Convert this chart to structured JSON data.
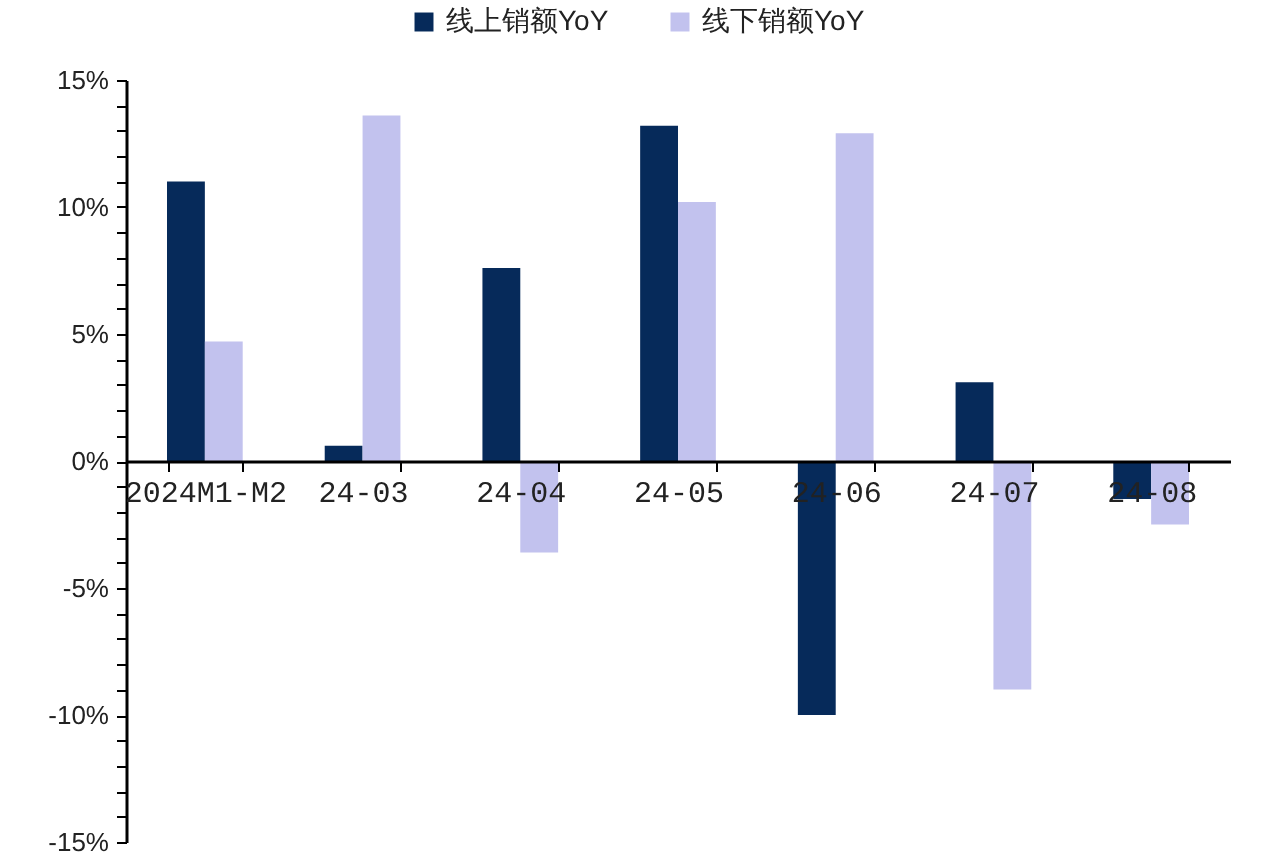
{
  "chart_data": {
    "type": "bar",
    "categories": [
      "2024M1-M2",
      "24-03",
      "24-04",
      "24-05",
      "24-06",
      "24-07",
      "24-08"
    ],
    "series": [
      {
        "name": "线上销额YoY",
        "color": "#062a5a",
        "values": [
          11.0,
          0.6,
          7.6,
          13.2,
          -10.0,
          3.1,
          -1.5
        ]
      },
      {
        "name": "线下销额YoY",
        "color": "#c2c2ee",
        "values": [
          4.7,
          13.6,
          -3.6,
          10.2,
          12.9,
          -9.0,
          -2.5
        ]
      }
    ],
    "ylim": [
      -15,
      15
    ],
    "yticks": [
      {
        "value": -15,
        "label": "-15%"
      },
      {
        "value": -14,
        "label": null
      },
      {
        "value": -13,
        "label": null
      },
      {
        "value": -12,
        "label": null
      },
      {
        "value": -11,
        "label": null
      },
      {
        "value": -10,
        "label": "-10%"
      },
      {
        "value": -9,
        "label": null
      },
      {
        "value": -8,
        "label": null
      },
      {
        "value": -7,
        "label": null
      },
      {
        "value": -6,
        "label": null
      },
      {
        "value": -5,
        "label": "-5%"
      },
      {
        "value": -4,
        "label": null
      },
      {
        "value": -3,
        "label": null
      },
      {
        "value": -2,
        "label": null
      },
      {
        "value": -1,
        "label": null
      },
      {
        "value": 0,
        "label": "0%"
      },
      {
        "value": 1,
        "label": null
      },
      {
        "value": 2,
        "label": null
      },
      {
        "value": 3,
        "label": null
      },
      {
        "value": 4,
        "label": null
      },
      {
        "value": 5,
        "label": "5%"
      },
      {
        "value": 6,
        "label": null
      },
      {
        "value": 7,
        "label": null
      },
      {
        "value": 8,
        "label": null
      },
      {
        "value": 9,
        "label": null
      },
      {
        "value": 10,
        "label": "10%"
      },
      {
        "value": 11,
        "label": null
      },
      {
        "value": 12,
        "label": null
      },
      {
        "value": 13,
        "label": null
      },
      {
        "value": 14,
        "label": null
      },
      {
        "value": 15,
        "label": "15%"
      }
    ],
    "legend": "top"
  }
}
